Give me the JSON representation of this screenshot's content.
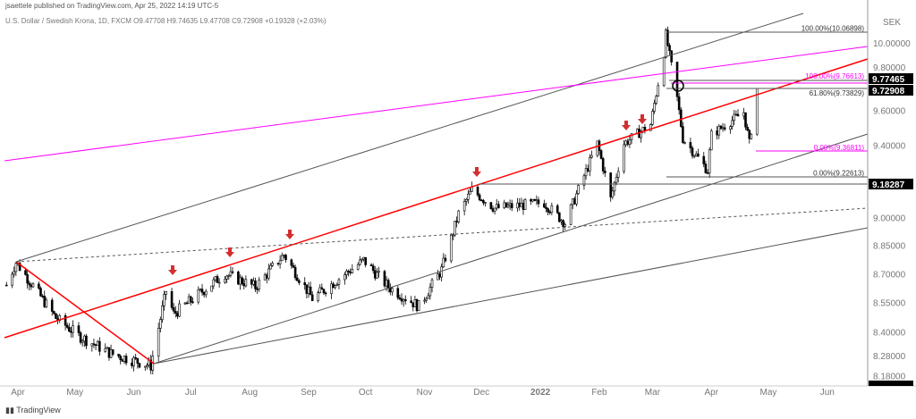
{
  "header": {
    "published": "jsaettele published on TradingView.com, Apr 25, 2022 14:19 UTC-5",
    "symbol": "U.S. Dollar / Swedish Krona, 1D, FXCM",
    "open": "O9.47708",
    "high": "H9.74635",
    "low": "L9.47708",
    "close": "C9.72908",
    "change": "+0.19328 (+2.03%)"
  },
  "footer": {
    "brand": "TradingView"
  },
  "chart_data": {
    "type": "candlestick",
    "currency": "SEK",
    "scale": "log",
    "ylim": [
      8.12,
      10.2
    ],
    "y_ticks": [
      "10.00000",
      "9.80000",
      "9.60000",
      "9.40000",
      "9.00000",
      "8.85000",
      "8.70000",
      "8.55000",
      "8.40000",
      "8.28000",
      "8.18000"
    ],
    "y_tick_values": [
      10.0,
      9.8,
      9.6,
      9.4,
      9.0,
      8.85,
      8.7,
      8.55,
      8.4,
      8.28,
      8.18
    ],
    "x_ticks": [
      {
        "label": "Apr",
        "date": "2021-04-01"
      },
      {
        "label": "May",
        "date": "2021-05-01"
      },
      {
        "label": "Jun",
        "date": "2021-06-01"
      },
      {
        "label": "Jul",
        "date": "2021-07-01"
      },
      {
        "label": "Aug",
        "date": "2021-08-01"
      },
      {
        "label": "Sep",
        "date": "2021-09-01"
      },
      {
        "label": "Oct",
        "date": "2021-10-01"
      },
      {
        "label": "Nov",
        "date": "2021-11-01"
      },
      {
        "label": "Dec",
        "date": "2021-12-01"
      },
      {
        "label": "2022",
        "date": "2022-01-01"
      },
      {
        "label": "Feb",
        "date": "2022-02-01"
      },
      {
        "label": "Mar",
        "date": "2022-03-01"
      },
      {
        "label": "Apr",
        "date": "2022-04-01"
      },
      {
        "label": "May",
        "date": "2022-05-01"
      },
      {
        "label": "Jun",
        "date": "2022-06-01"
      }
    ],
    "price_path": [
      [
        "2021-03-26",
        8.64
      ],
      [
        "2021-03-31",
        8.76
      ],
      [
        "2021-04-21",
        8.47
      ],
      [
        "2021-05-03",
        8.38
      ],
      [
        "2021-05-20",
        8.29
      ],
      [
        "2021-06-10",
        8.23
      ],
      [
        "2021-06-18",
        8.61
      ],
      [
        "2021-06-22",
        8.49
      ],
      [
        "2021-07-19",
        8.7
      ],
      [
        "2021-08-04",
        8.63
      ],
      [
        "2021-08-19",
        8.8
      ],
      [
        "2021-09-03",
        8.57
      ],
      [
        "2021-09-30",
        8.77
      ],
      [
        "2021-10-13",
        8.63
      ],
      [
        "2021-10-29",
        8.53
      ],
      [
        "2021-11-10",
        8.72
      ],
      [
        "2021-11-19",
        9.02
      ],
      [
        "2021-11-26",
        9.15
      ],
      [
        "2021-12-08",
        9.05
      ],
      [
        "2022-01-03",
        9.08
      ],
      [
        "2022-01-14",
        8.97
      ],
      [
        "2022-01-26",
        9.28
      ],
      [
        "2022-01-31",
        9.41
      ],
      [
        "2022-02-07",
        9.1
      ],
      [
        "2022-02-14",
        9.41
      ],
      [
        "2022-02-28",
        9.52
      ],
      [
        "2022-03-07",
        9.94
      ],
      [
        "2022-03-08",
        10.05
      ],
      [
        "2022-03-14",
        9.67
      ],
      [
        "2022-03-17",
        9.44
      ],
      [
        "2022-03-30",
        9.26
      ],
      [
        "2022-04-01",
        9.46
      ],
      [
        "2022-04-18",
        9.59
      ],
      [
        "2022-04-21",
        9.41
      ],
      [
        "2022-04-25",
        9.72908
      ]
    ],
    "price_tags": [
      {
        "label": "9.77465",
        "value": 9.77465
      },
      {
        "label": "9.72908",
        "value": 9.72908
      },
      {
        "label": "9.18287",
        "value": 9.18287
      }
    ],
    "fib_labels": [
      {
        "text": "100.00%(10.06898)",
        "value": 10.06898,
        "color": "#333333"
      },
      {
        "text": "100.00%(9.76613)",
        "value": 9.76613,
        "color": "#ff00ff"
      },
      {
        "text": "61.80%(9.73829)",
        "value": 9.73829,
        "color": "#333333"
      },
      {
        "text": "0.00%(9.36811)",
        "value": 9.36811,
        "color": "#ff00ff"
      },
      {
        "text": "0.00%(9.22613)",
        "value": 9.22613,
        "color": "#333333"
      }
    ],
    "colors": {
      "up": "#ffffff",
      "down": "#000000",
      "trendline": "#ff0000",
      "magenta": "#ff00ff",
      "arrow": "#d32f2f"
    }
  }
}
